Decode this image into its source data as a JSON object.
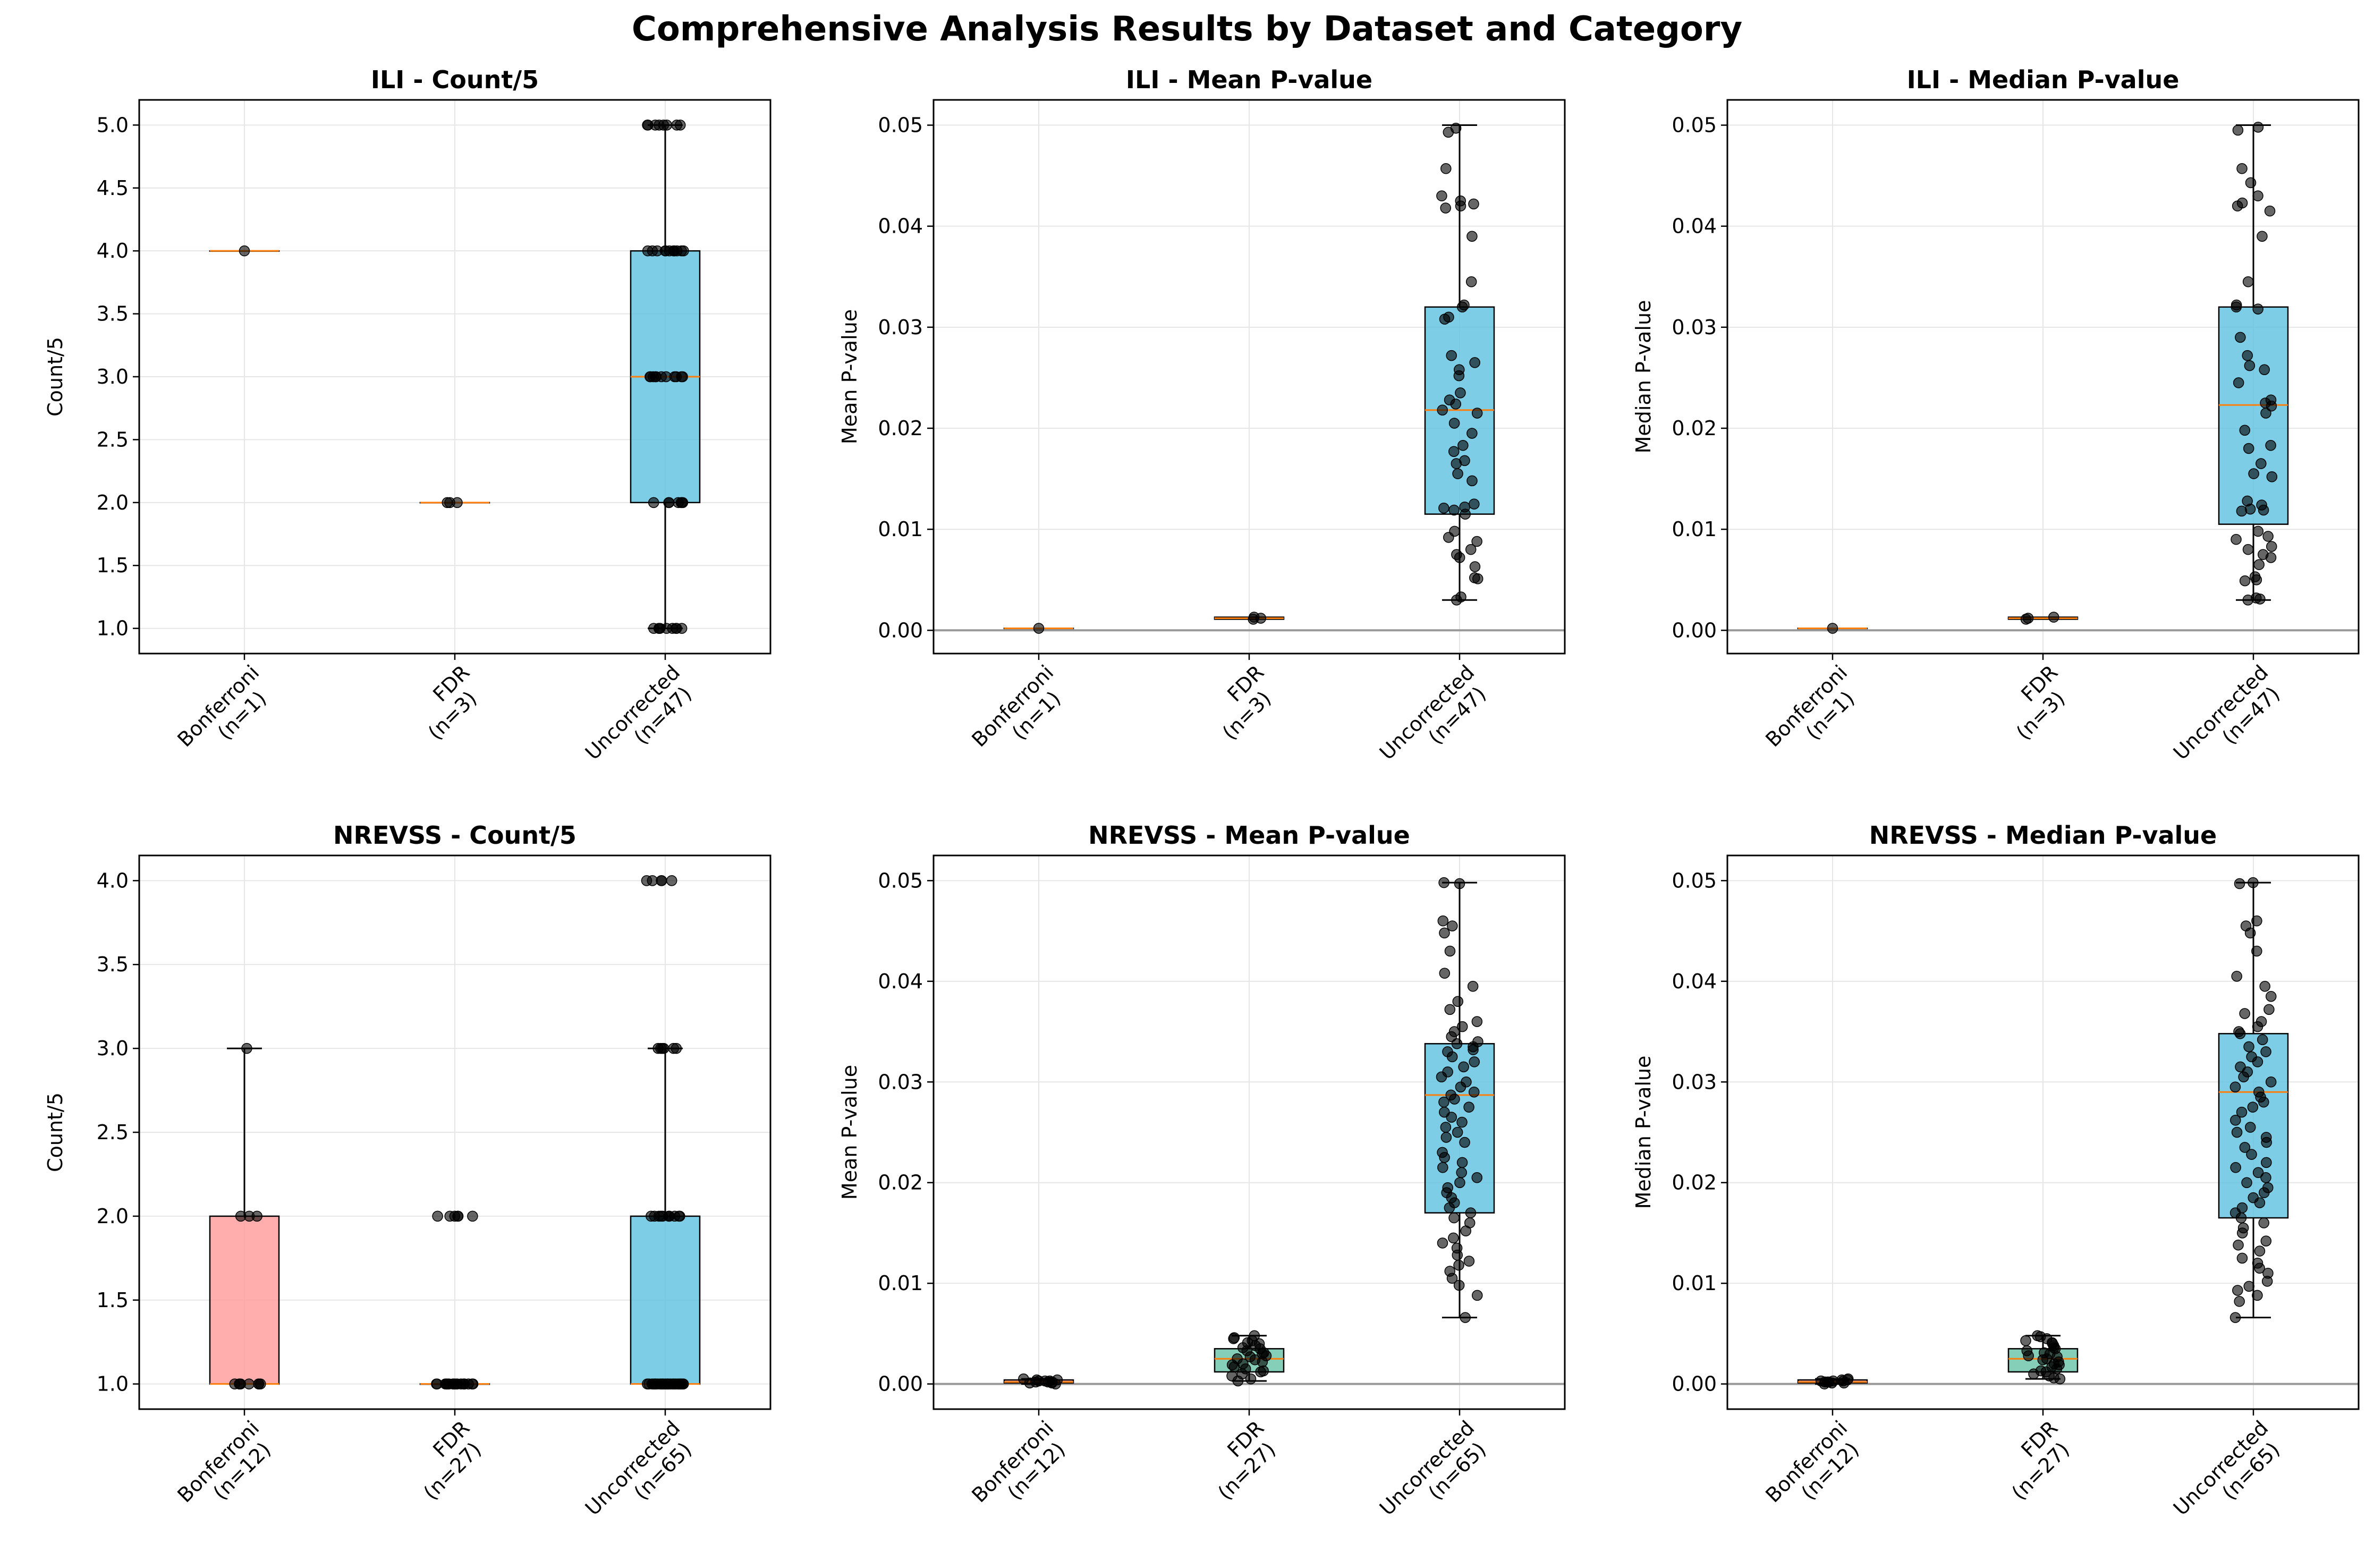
{
  "figure": {
    "title": "Comprehensive Analysis Results by Dataset and Category"
  },
  "chart_data": [
    {
      "type": "box",
      "title": "ILI - Count/5",
      "xlabel": "",
      "ylabel": "Count/5",
      "ylim": [
        0.8,
        5.2
      ],
      "yticks": [
        1.0,
        1.5,
        2.0,
        2.5,
        3.0,
        3.5,
        4.0,
        4.5,
        5.0
      ],
      "tick_decimals": 1,
      "zero_line": false,
      "grid": true,
      "categories": [
        "Bonferroni\n(n=1)",
        "FDR\n(n=3)",
        "Uncorrected\n(n=47)"
      ],
      "boxes": [
        {
          "q1": 4.0,
          "median": 4.0,
          "q3": 4.0,
          "whisker_low": 4.0,
          "whisker_high": 4.0,
          "color": "#ff9999"
        },
        {
          "q1": 2.0,
          "median": 2.0,
          "q3": 2.0,
          "whisker_low": 2.0,
          "whisker_high": 2.0,
          "color": "#66c2a5"
        },
        {
          "q1": 2.0,
          "median": 3.0,
          "q3": 4.0,
          "whisker_low": 1.0,
          "whisker_high": 5.0,
          "color": "#5bc0de"
        }
      ],
      "points": [
        [
          4.0
        ],
        [
          2.0,
          2.0,
          2.0
        ],
        [
          5,
          5,
          5,
          5,
          5,
          5,
          5,
          5,
          4,
          4,
          4,
          4,
          4,
          4,
          4,
          4,
          4,
          4,
          4,
          4,
          3,
          3,
          3,
          3,
          3,
          3,
          3,
          3,
          3,
          3,
          3,
          2,
          2,
          2,
          2,
          2,
          2,
          2,
          1,
          1,
          1,
          1,
          1,
          1,
          1,
          1,
          1
        ]
      ]
    },
    {
      "type": "box",
      "title": "ILI - Mean P-value",
      "xlabel": "",
      "ylabel": "Mean P-value",
      "ylim": [
        -0.0023,
        0.0525
      ],
      "yticks": [
        0.0,
        0.01,
        0.02,
        0.03,
        0.04,
        0.05
      ],
      "tick_decimals": 2,
      "zero_line": true,
      "grid": true,
      "categories": [
        "Bonferroni\n(n=1)",
        "FDR\n(n=3)",
        "Uncorrected\n(n=47)"
      ],
      "boxes": [
        {
          "q1": 0.0002,
          "median": 0.0002,
          "q3": 0.0002,
          "whisker_low": 0.0002,
          "whisker_high": 0.0002,
          "color": "#ff9999"
        },
        {
          "q1": 0.0011,
          "median": 0.0012,
          "q3": 0.0013,
          "whisker_low": 0.0011,
          "whisker_high": 0.0013,
          "color": "#66c2a5"
        },
        {
          "q1": 0.0115,
          "median": 0.0218,
          "q3": 0.032,
          "whisker_low": 0.003,
          "whisker_high": 0.05,
          "color": "#5bc0de"
        }
      ],
      "points": [
        [
          0.0002
        ],
        [
          0.0011,
          0.0012,
          0.0013
        ],
        [
          0.0497,
          0.0493,
          0.0457,
          0.043,
          0.0425,
          0.0422,
          0.042,
          0.0418,
          0.039,
          0.0345,
          0.0322,
          0.032,
          0.031,
          0.0308,
          0.0272,
          0.0265,
          0.0258,
          0.0252,
          0.0235,
          0.0228,
          0.0224,
          0.0218,
          0.0215,
          0.0205,
          0.0195,
          0.0183,
          0.0177,
          0.0168,
          0.0165,
          0.0155,
          0.0148,
          0.0125,
          0.0122,
          0.0121,
          0.0119,
          0.0115,
          0.0098,
          0.0092,
          0.0088,
          0.008,
          0.0075,
          0.0072,
          0.0063,
          0.0052,
          0.0051,
          0.0033,
          0.003
        ]
      ]
    },
    {
      "type": "box",
      "title": "ILI - Median P-value",
      "xlabel": "",
      "ylabel": "Median P-value",
      "ylim": [
        -0.0023,
        0.0525
      ],
      "yticks": [
        0.0,
        0.01,
        0.02,
        0.03,
        0.04,
        0.05
      ],
      "tick_decimals": 2,
      "zero_line": true,
      "grid": true,
      "categories": [
        "Bonferroni\n(n=1)",
        "FDR\n(n=3)",
        "Uncorrected\n(n=47)"
      ],
      "boxes": [
        {
          "q1": 0.0002,
          "median": 0.0002,
          "q3": 0.0002,
          "whisker_low": 0.0002,
          "whisker_high": 0.0002,
          "color": "#ff9999"
        },
        {
          "q1": 0.0011,
          "median": 0.0012,
          "q3": 0.0013,
          "whisker_low": 0.0011,
          "whisker_high": 0.0013,
          "color": "#66c2a5"
        },
        {
          "q1": 0.0105,
          "median": 0.0223,
          "q3": 0.032,
          "whisker_low": 0.003,
          "whisker_high": 0.05,
          "color": "#5bc0de"
        }
      ],
      "points": [
        [
          0.0002
        ],
        [
          0.0011,
          0.0012,
          0.0013
        ],
        [
          0.0498,
          0.0495,
          0.0457,
          0.0443,
          0.043,
          0.0423,
          0.042,
          0.0415,
          0.039,
          0.0345,
          0.0322,
          0.032,
          0.0318,
          0.029,
          0.0262,
          0.0258,
          0.0245,
          0.0228,
          0.0225,
          0.0222,
          0.0198,
          0.0183,
          0.018,
          0.0165,
          0.0155,
          0.0152,
          0.0128,
          0.0124,
          0.012,
          0.0119,
          0.0098,
          0.0093,
          0.009,
          0.0083,
          0.008,
          0.0075,
          0.0072,
          0.0065,
          0.0053,
          0.005,
          0.0049,
          0.0032,
          0.003,
          0.0031,
          0.0118,
          0.0215,
          0.0272
        ]
      ]
    },
    {
      "type": "box",
      "title": "NREVSS - Count/5",
      "xlabel": "",
      "ylabel": "Count/5",
      "ylim": [
        0.85,
        4.15
      ],
      "yticks": [
        1.0,
        1.5,
        2.0,
        2.5,
        3.0,
        3.5,
        4.0
      ],
      "tick_decimals": 1,
      "zero_line": false,
      "grid": true,
      "categories": [
        "Bonferroni\n(n=12)",
        "FDR\n(n=27)",
        "Uncorrected\n(n=65)"
      ],
      "boxes": [
        {
          "q1": 1.0,
          "median": 1.0,
          "q3": 2.0,
          "whisker_low": 1.0,
          "whisker_high": 3.0,
          "color": "#ff9999"
        },
        {
          "q1": 1.0,
          "median": 1.0,
          "q3": 1.0,
          "whisker_low": 1.0,
          "whisker_high": 1.0,
          "color": "#66c2a5"
        },
        {
          "q1": 1.0,
          "median": 1.0,
          "q3": 2.0,
          "whisker_low": 1.0,
          "whisker_high": 3.0,
          "color": "#5bc0de"
        }
      ],
      "points": [
        [
          3,
          2,
          2,
          2,
          1,
          1,
          1,
          1,
          1,
          1,
          1,
          1
        ],
        [
          2,
          2,
          2,
          2,
          2,
          2,
          1,
          1,
          1,
          1,
          1,
          1,
          1,
          1,
          1,
          1,
          1,
          1,
          1,
          1,
          1,
          1,
          1,
          1,
          1,
          1,
          1
        ],
        [
          4,
          4,
          4,
          4,
          4,
          3,
          3,
          3,
          3,
          3,
          3,
          2,
          2,
          2,
          2,
          2,
          2,
          2,
          2,
          2,
          2,
          2,
          1,
          1,
          1,
          1,
          1,
          1,
          1,
          1,
          1,
          1,
          1,
          1,
          1,
          1,
          1,
          1,
          1,
          1,
          1,
          1,
          1,
          1,
          1,
          1,
          1,
          1,
          1,
          1,
          1,
          1,
          1,
          1,
          1,
          1,
          1,
          1,
          1,
          1,
          1,
          1,
          1,
          1,
          1
        ]
      ]
    },
    {
      "type": "box",
      "title": "NREVSS - Mean P-value",
      "xlabel": "",
      "ylabel": "Mean P-value",
      "ylim": [
        -0.0025,
        0.0525
      ],
      "yticks": [
        0.0,
        0.01,
        0.02,
        0.03,
        0.04,
        0.05
      ],
      "tick_decimals": 2,
      "zero_line": true,
      "grid": true,
      "categories": [
        "Bonferroni\n(n=12)",
        "FDR\n(n=27)",
        "Uncorrected\n(n=65)"
      ],
      "boxes": [
        {
          "q1": 0.0001,
          "median": 0.0002,
          "q3": 0.0004,
          "whisker_low": 0.0,
          "whisker_high": 0.0005,
          "color": "#ff9999"
        },
        {
          "q1": 0.0012,
          "median": 0.0025,
          "q3": 0.0035,
          "whisker_low": 0.0003,
          "whisker_high": 0.0048,
          "color": "#66c2a5"
        },
        {
          "q1": 0.017,
          "median": 0.0287,
          "q3": 0.0338,
          "whisker_low": 0.0066,
          "whisker_high": 0.0498,
          "color": "#5bc0de"
        }
      ],
      "points": [
        [
          0.0001,
          0.0002,
          0.0003,
          0.0004,
          0.0002,
          0.0001,
          0.0003,
          0.0004,
          0.0002,
          0.0005,
          0.0,
          0.0003
        ],
        [
          0.0048,
          0.0046,
          0.0045,
          0.0043,
          0.0041,
          0.004,
          0.0038,
          0.0036,
          0.0035,
          0.0033,
          0.0031,
          0.003,
          0.0028,
          0.0027,
          0.0025,
          0.0024,
          0.0022,
          0.002,
          0.0019,
          0.0017,
          0.0015,
          0.0013,
          0.0012,
          0.001,
          0.0008,
          0.0005,
          0.0003
        ],
        [
          0.0498,
          0.0497,
          0.046,
          0.0455,
          0.0448,
          0.043,
          0.0408,
          0.0395,
          0.038,
          0.0372,
          0.036,
          0.0355,
          0.035,
          0.0345,
          0.034,
          0.0338,
          0.0335,
          0.0332,
          0.033,
          0.0325,
          0.032,
          0.0315,
          0.031,
          0.0305,
          0.03,
          0.0295,
          0.029,
          0.0287,
          0.0283,
          0.028,
          0.0275,
          0.027,
          0.0265,
          0.026,
          0.0255,
          0.025,
          0.0245,
          0.024,
          0.023,
          0.0225,
          0.022,
          0.0215,
          0.021,
          0.0205,
          0.02,
          0.0195,
          0.019,
          0.0185,
          0.018,
          0.0175,
          0.017,
          0.0165,
          0.016,
          0.0152,
          0.0145,
          0.014,
          0.0135,
          0.0128,
          0.0122,
          0.0118,
          0.0112,
          0.0105,
          0.0098,
          0.0088,
          0.0066
        ]
      ]
    },
    {
      "type": "box",
      "title": "NREVSS - Median P-value",
      "xlabel": "",
      "ylabel": "Median P-value",
      "ylim": [
        -0.0025,
        0.0525
      ],
      "yticks": [
        0.0,
        0.01,
        0.02,
        0.03,
        0.04,
        0.05
      ],
      "tick_decimals": 2,
      "zero_line": true,
      "grid": true,
      "categories": [
        "Bonferroni\n(n=12)",
        "FDR\n(n=27)",
        "Uncorrected\n(n=65)"
      ],
      "boxes": [
        {
          "q1": 0.0001,
          "median": 0.0002,
          "q3": 0.0004,
          "whisker_low": 0.0,
          "whisker_high": 0.0005,
          "color": "#ff9999"
        },
        {
          "q1": 0.0012,
          "median": 0.0025,
          "q3": 0.0035,
          "whisker_low": 0.0005,
          "whisker_high": 0.0048,
          "color": "#66c2a5"
        },
        {
          "q1": 0.0165,
          "median": 0.029,
          "q3": 0.0348,
          "whisker_low": 0.0066,
          "whisker_high": 0.0498,
          "color": "#5bc0de"
        }
      ],
      "points": [
        [
          0.0001,
          0.0002,
          0.0003,
          0.0004,
          0.0002,
          0.0001,
          0.0003,
          0.0004,
          0.0002,
          0.0005,
          0.0,
          0.0003
        ],
        [
          0.0048,
          0.0047,
          0.0045,
          0.0043,
          0.0041,
          0.004,
          0.0038,
          0.0036,
          0.0035,
          0.0033,
          0.0031,
          0.003,
          0.0028,
          0.0027,
          0.0025,
          0.0024,
          0.0022,
          0.002,
          0.0019,
          0.0017,
          0.0015,
          0.0013,
          0.0012,
          0.001,
          0.0008,
          0.0006,
          0.0005
        ],
        [
          0.0498,
          0.0497,
          0.046,
          0.0455,
          0.0448,
          0.043,
          0.0405,
          0.0395,
          0.0385,
          0.0372,
          0.0368,
          0.036,
          0.0355,
          0.035,
          0.0348,
          0.0342,
          0.0335,
          0.033,
          0.0325,
          0.032,
          0.0315,
          0.031,
          0.0305,
          0.03,
          0.0295,
          0.029,
          0.0285,
          0.028,
          0.0275,
          0.027,
          0.0262,
          0.0255,
          0.025,
          0.0245,
          0.024,
          0.0235,
          0.0228,
          0.022,
          0.0215,
          0.021,
          0.0205,
          0.02,
          0.0195,
          0.019,
          0.0185,
          0.018,
          0.0175,
          0.017,
          0.0165,
          0.016,
          0.0155,
          0.015,
          0.0142,
          0.0138,
          0.0132,
          0.0125,
          0.012,
          0.0115,
          0.011,
          0.0102,
          0.0097,
          0.0093,
          0.0088,
          0.0082,
          0.0066
        ]
      ]
    }
  ]
}
